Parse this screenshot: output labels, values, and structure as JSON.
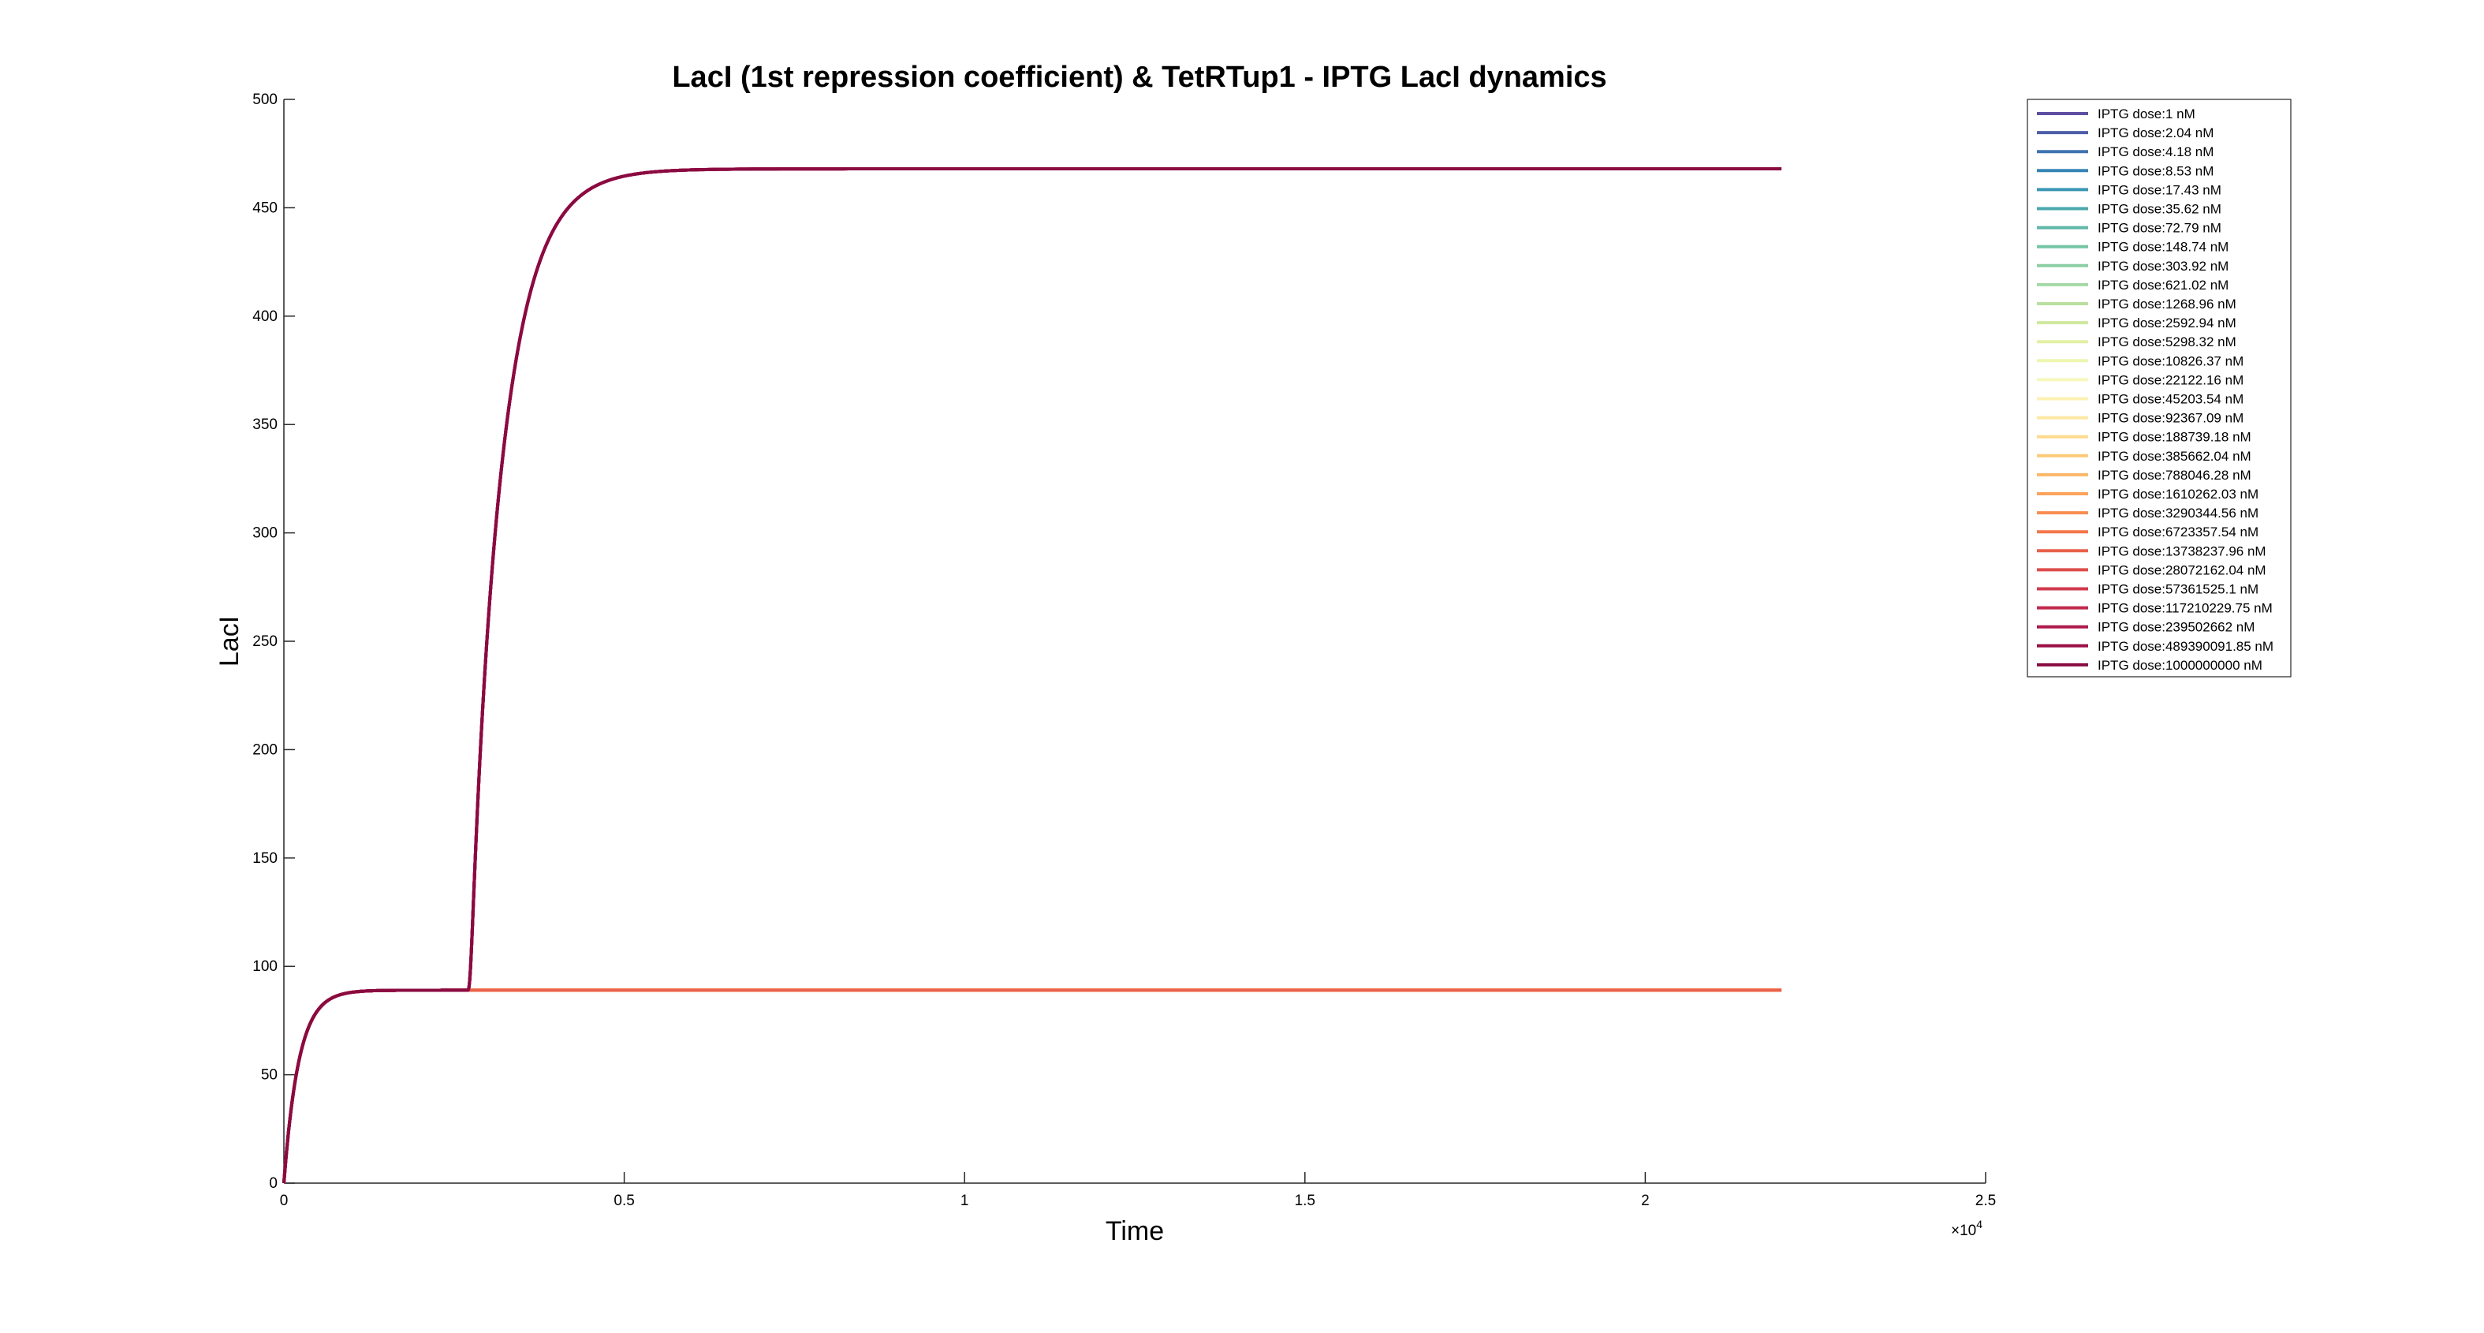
{
  "chart_data": {
    "type": "line",
    "title": "LacI (1st repression coefficient) & TetRTup1 - IPTG LacI dynamics",
    "xlabel": "Time",
    "ylabel": "LacI",
    "x_exponent_label": "×10",
    "x_exponent_power": "4",
    "xlim": [
      0,
      25000
    ],
    "ylim": [
      0,
      500
    ],
    "x_ticks": [
      0,
      5000,
      10000,
      15000,
      20000,
      25000
    ],
    "x_tick_labels": [
      "0",
      "0.5",
      "1",
      "1.5",
      "2",
      "2.5"
    ],
    "y_ticks": [
      0,
      50,
      100,
      150,
      200,
      250,
      300,
      350,
      400,
      450,
      500
    ],
    "y_tick_labels": [
      "0",
      "50",
      "100",
      "150",
      "200",
      "250",
      "300",
      "350",
      "400",
      "450",
      "500"
    ],
    "grid": false,
    "legend_position": "top-right",
    "x_end": 22000,
    "induction_time": 2700,
    "low_steady_state": 89,
    "high_steady_state": 468,
    "series": [
      {
        "name": "IPTG dose:1 nM",
        "color": "#5e4fa2",
        "response": "low"
      },
      {
        "name": "IPTG dose:2.04 nM",
        "color": "#4d5ea8",
        "response": "low"
      },
      {
        "name": "IPTG dose:4.18 nM",
        "color": "#3f72b0",
        "response": "low"
      },
      {
        "name": "IPTG dose:8.53 nM",
        "color": "#3584b5",
        "response": "low"
      },
      {
        "name": "IPTG dose:17.43 nM",
        "color": "#3c97b4",
        "response": "low"
      },
      {
        "name": "IPTG dose:35.62 nM",
        "color": "#4ba8ad",
        "response": "low"
      },
      {
        "name": "IPTG dose:72.79 nM",
        "color": "#5fb8a8",
        "response": "low"
      },
      {
        "name": "IPTG dose:148.74 nM",
        "color": "#74c6a5",
        "response": "low"
      },
      {
        "name": "IPTG dose:303.92 nM",
        "color": "#8ccfa4",
        "response": "low"
      },
      {
        "name": "IPTG dose:621.02 nM",
        "color": "#a3d9a4",
        "response": "low"
      },
      {
        "name": "IPTG dose:1268.96 nM",
        "color": "#badfa0",
        "response": "low"
      },
      {
        "name": "IPTG dose:2592.94 nM",
        "color": "#cfe89e",
        "response": "low"
      },
      {
        "name": "IPTG dose:5298.32 nM",
        "color": "#e1f0a4",
        "response": "low"
      },
      {
        "name": "IPTG dose:10826.37 nM",
        "color": "#eef6b1",
        "response": "low"
      },
      {
        "name": "IPTG dose:22122.16 nM",
        "color": "#f6f8bd",
        "response": "low"
      },
      {
        "name": "IPTG dose:45203.54 nM",
        "color": "#fdf1b3",
        "response": "low"
      },
      {
        "name": "IPTG dose:92367.09 nM",
        "color": "#fee8a2",
        "response": "low"
      },
      {
        "name": "IPTG dose:188739.18 nM",
        "color": "#fedb8e",
        "response": "low"
      },
      {
        "name": "IPTG dose:385662.04 nM",
        "color": "#fdca79",
        "response": "low"
      },
      {
        "name": "IPTG dose:788046.28 nM",
        "color": "#fdb768",
        "response": "low"
      },
      {
        "name": "IPTG dose:1610262.03 nM",
        "color": "#fca35c",
        "response": "low"
      },
      {
        "name": "IPTG dose:3290344.56 nM",
        "color": "#f88d52",
        "response": "low"
      },
      {
        "name": "IPTG dose:6723357.54 nM",
        "color": "#f2774a",
        "response": "low"
      },
      {
        "name": "IPTG dose:13738237.96 nM",
        "color": "#e9614a",
        "response": "low"
      },
      {
        "name": "IPTG dose:28072162.04 nM",
        "color": "#dd4c4b",
        "response": "high"
      },
      {
        "name": "IPTG dose:57361525.1 nM",
        "color": "#d0394c",
        "response": "high"
      },
      {
        "name": "IPTG dose:117210229.75 nM",
        "color": "#c0284c",
        "response": "high"
      },
      {
        "name": "IPTG dose:239502662 nM",
        "color": "#ae1a4a",
        "response": "high"
      },
      {
        "name": "IPTG dose:489390091.85 nM",
        "color": "#9b0f47",
        "response": "high"
      },
      {
        "name": "IPTG dose:1000000000 nM",
        "color": "#8a0a42",
        "response": "high"
      }
    ]
  }
}
